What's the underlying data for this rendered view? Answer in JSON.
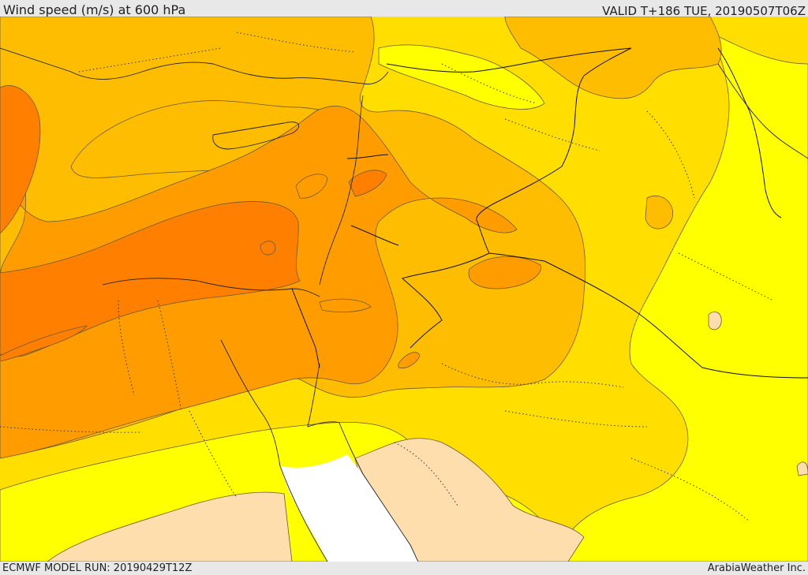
{
  "header": {
    "title": "Wind speed (m/s) at 600 hPa",
    "valid": "VALID T+186 TUE, 20190507T06Z"
  },
  "footer": {
    "model_run": "ECMWF MODEL RUN: 20190429T12Z",
    "credit": "ArabiaWeather Inc."
  },
  "colors": {
    "band_0": "#ffdead",
    "band_1": "#ffff00",
    "band_2": "#ffde00",
    "band_3": "#ffbd00",
    "band_4": "#ff9d00",
    "band_5": "#ff7f00",
    "sea_gap": "#ffffff"
  }
}
